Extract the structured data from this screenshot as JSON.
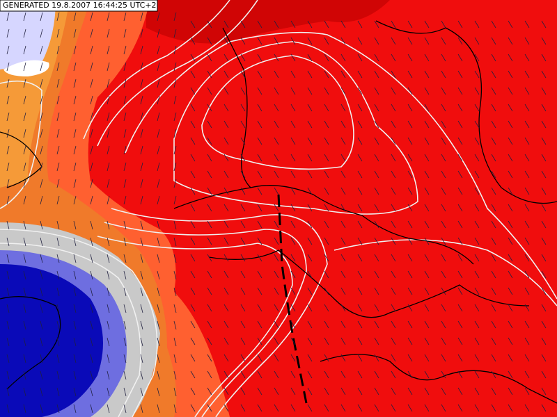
{
  "label": "GENERATED 19.8.2007 16:44:25 UTC+2"
}
